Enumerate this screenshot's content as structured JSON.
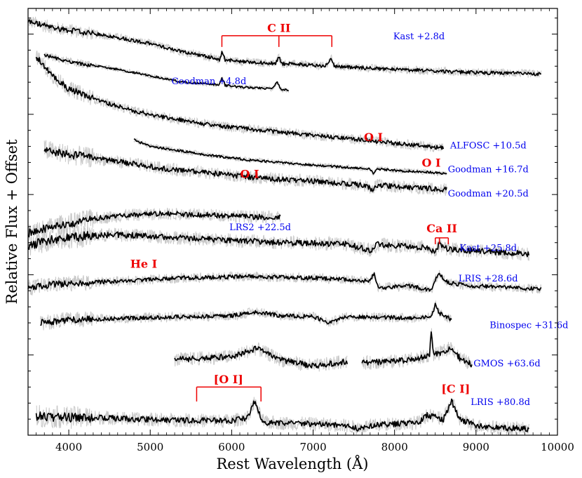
{
  "chart_data": {
    "type": "line",
    "title": "",
    "xlabel": "Rest Wavelength (Å)",
    "ylabel": "Relative Flux + Offset",
    "xlim": [
      3500,
      10000
    ],
    "ylim": [
      0,
      13.3
    ],
    "xticks": [
      4000,
      5000,
      6000,
      7000,
      8000,
      9000,
      10000
    ],
    "xtick_labels": [
      "4000",
      "5000",
      "6000",
      "7000",
      "8000",
      "9000",
      "10000"
    ],
    "grid": false,
    "legend": "none",
    "colors": {
      "spectrum": "#000000",
      "raw_spectrum": "#c8c8c8",
      "series_label": "#0000ee",
      "line_id": "#ee0000"
    },
    "series": [
      {
        "name": "Kast +2.8d",
        "label_x": 8300,
        "label_y": 12.45,
        "gaps": [],
        "x": [
          3500,
          3800,
          4200,
          4600,
          5000,
          5400,
          5700,
          5850,
          5880,
          5920,
          6100,
          6400,
          6540,
          6580,
          6620,
          6900,
          7150,
          7220,
          7260,
          7600,
          8000,
          8500,
          9000,
          9500,
          9800
        ],
        "y": [
          12.9,
          12.7,
          12.55,
          12.4,
          12.2,
          11.95,
          11.8,
          11.7,
          11.95,
          11.7,
          11.65,
          11.6,
          11.58,
          11.8,
          11.58,
          11.55,
          11.5,
          11.75,
          11.5,
          11.45,
          11.4,
          11.35,
          11.3,
          11.28,
          11.25
        ],
        "noise": 0.12
      },
      {
        "name": "Goodman +4.8d",
        "label_x": 5720,
        "label_y": 11.05,
        "gaps": [],
        "x": [
          3700,
          3900,
          4200,
          4500,
          4800,
          5100,
          5400,
          5700,
          5850,
          5880,
          5920,
          6100,
          6300,
          6500,
          6560,
          6600,
          6700
        ],
        "y": [
          11.85,
          11.7,
          11.55,
          11.45,
          11.3,
          11.15,
          11.0,
          10.95,
          10.92,
          11.15,
          10.9,
          10.85,
          10.82,
          10.8,
          11.0,
          10.78,
          10.75
        ],
        "noise": 0.07
      },
      {
        "name": "ALFOSC +10.5d",
        "label_x": 9150,
        "label_y": 9.05,
        "gaps": [],
        "x": [
          3600,
          3800,
          4000,
          4400,
          4800,
          5200,
          5600,
          6000,
          6400,
          6800,
          7200,
          7700,
          8200,
          8600
        ],
        "y": [
          11.8,
          11.2,
          10.8,
          10.4,
          10.1,
          9.9,
          9.72,
          9.6,
          9.5,
          9.4,
          9.3,
          9.18,
          9.05,
          8.95
        ],
        "noise": 0.14
      },
      {
        "name": "Goodman +16.7d",
        "label_x": 9150,
        "label_y": 8.3,
        "gaps": [],
        "x": [
          4800,
          5000,
          5400,
          5800,
          6200,
          6600,
          7000,
          7400,
          7700,
          7740,
          7780,
          8000,
          8400,
          8640
        ],
        "y": [
          9.2,
          9.0,
          8.85,
          8.7,
          8.58,
          8.5,
          8.42,
          8.35,
          8.3,
          8.15,
          8.3,
          8.25,
          8.2,
          8.15
        ],
        "noise": 0.08
      },
      {
        "name": "Goodman +20.5d",
        "label_x": 9150,
        "label_y": 7.55,
        "gaps": [],
        "x": [
          3700,
          4000,
          4400,
          4800,
          5200,
          5600,
          6000,
          6400,
          6800,
          7200,
          7600,
          7740,
          7780,
          8000,
          8400,
          8640
        ],
        "y": [
          8.9,
          8.75,
          8.6,
          8.45,
          8.3,
          8.2,
          8.1,
          8.0,
          7.95,
          7.88,
          7.8,
          7.65,
          7.8,
          7.75,
          7.7,
          7.65
        ],
        "noise": 0.18
      },
      {
        "name": "LRS2 +22.5d",
        "label_x": 6350,
        "label_y": 6.5,
        "gaps": [],
        "x": [
          3500,
          3900,
          4300,
          4700,
          5100,
          5500,
          5900,
          6300,
          6600
        ],
        "y": [
          6.3,
          6.55,
          6.75,
          6.85,
          6.9,
          6.88,
          6.85,
          6.8,
          6.78
        ],
        "noise": 0.18
      },
      {
        "name": "Kast +25.8d",
        "label_x": 9150,
        "label_y": 5.85,
        "gaps": [],
        "x": [
          3500,
          3800,
          4200,
          4600,
          5000,
          5400,
          5800,
          6200,
          6600,
          7000,
          7400,
          7740,
          7780,
          8000,
          8400,
          8500,
          8550,
          8650,
          9000,
          9300,
          9650
        ],
        "y": [
          5.9,
          6.1,
          6.2,
          6.25,
          6.2,
          6.15,
          6.1,
          6.05,
          6.0,
          5.98,
          5.95,
          5.75,
          5.95,
          5.9,
          5.85,
          5.7,
          5.95,
          5.8,
          5.75,
          5.7,
          5.65
        ],
        "noise": 0.2
      },
      {
        "name": "LRIS +28.6d",
        "label_x": 9150,
        "label_y": 4.9,
        "gaps": [],
        "x": [
          3500,
          3800,
          4200,
          4600,
          5000,
          5400,
          5800,
          6200,
          6600,
          7000,
          7400,
          7700,
          7750,
          7800,
          8200,
          8450,
          8500,
          8550,
          8650,
          9000,
          9400,
          9800
        ],
        "y": [
          4.6,
          4.7,
          4.75,
          4.8,
          4.85,
          4.9,
          4.92,
          4.95,
          4.92,
          4.9,
          4.85,
          4.8,
          5.05,
          4.6,
          4.65,
          4.5,
          4.85,
          5.0,
          4.75,
          4.65,
          4.6,
          4.55
        ],
        "noise": 0.14
      },
      {
        "name": "Binospec +31.6d",
        "label_x": 9650,
        "label_y": 3.45,
        "gaps": [],
        "x": [
          3650,
          4000,
          4400,
          4800,
          5200,
          5600,
          6000,
          6300,
          6600,
          7000,
          7200,
          7400,
          7800,
          8200,
          8450,
          8500,
          8550,
          8700
        ],
        "y": [
          3.5,
          3.6,
          3.62,
          3.65,
          3.68,
          3.7,
          3.72,
          3.85,
          3.72,
          3.7,
          3.5,
          3.7,
          3.68,
          3.65,
          3.7,
          4.05,
          3.8,
          3.6
        ],
        "noise": 0.14
      },
      {
        "name": "GMOS +63.6d",
        "label_x": 9380,
        "label_y": 2.25,
        "gaps": [
          [
            7420,
            7600
          ]
        ],
        "x": [
          5300,
          5600,
          6000,
          6300,
          6600,
          7000,
          7400,
          7600,
          8000,
          8300,
          8430,
          8450,
          8480,
          8550,
          8700,
          8800,
          8950
        ],
        "y": [
          2.35,
          2.4,
          2.45,
          2.7,
          2.35,
          2.15,
          2.3,
          2.25,
          2.3,
          2.4,
          2.5,
          3.3,
          2.5,
          2.55,
          2.75,
          2.4,
          2.2
        ],
        "noise": 0.2
      },
      {
        "name": "LRIS +80.8d",
        "label_x": 9300,
        "label_y": 1.05,
        "gaps": [],
        "x": [
          3600,
          4000,
          4400,
          4800,
          5200,
          5600,
          6000,
          6200,
          6280,
          6330,
          6400,
          6600,
          7000,
          7400,
          7550,
          7700,
          8000,
          8300,
          8400,
          8600,
          8700,
          8730,
          8800,
          9000,
          9300,
          9650
        ],
        "y": [
          0.6,
          0.55,
          0.55,
          0.5,
          0.48,
          0.46,
          0.45,
          0.55,
          1.05,
          0.7,
          0.4,
          0.38,
          0.35,
          0.3,
          0.22,
          0.3,
          0.35,
          0.4,
          0.62,
          0.5,
          1.05,
          0.9,
          0.5,
          0.3,
          0.22,
          0.2
        ],
        "noise": 0.2
      }
    ],
    "annotations": [
      {
        "text": "C II",
        "x": 6580,
        "y": 12.7,
        "bracket": [
          5880,
          6580,
          7230
        ],
        "bracket_top": 12.45,
        "bracket_bottom": 12.1
      },
      {
        "text": "O I",
        "x": 7740,
        "y": 9.3
      },
      {
        "text": "O I",
        "x": 8450,
        "y": 8.5
      },
      {
        "text": "O I",
        "x": 6220,
        "y": 8.15
      },
      {
        "text": "Ca II",
        "x": 8580,
        "y": 6.45,
        "bracket": [
          8500,
          8550,
          8660
        ],
        "bracket_top": 6.15,
        "bracket_bottom": 5.95
      },
      {
        "text": "He I",
        "x": 4920,
        "y": 5.35
      },
      {
        "text": "[O I]",
        "x": 5960,
        "y": 1.75,
        "bracket": [
          5570,
          6360
        ],
        "bracket_top": 1.5,
        "bracket_bottom": 1.05
      },
      {
        "text": "[C I]",
        "x": 8750,
        "y": 1.45
      }
    ]
  }
}
